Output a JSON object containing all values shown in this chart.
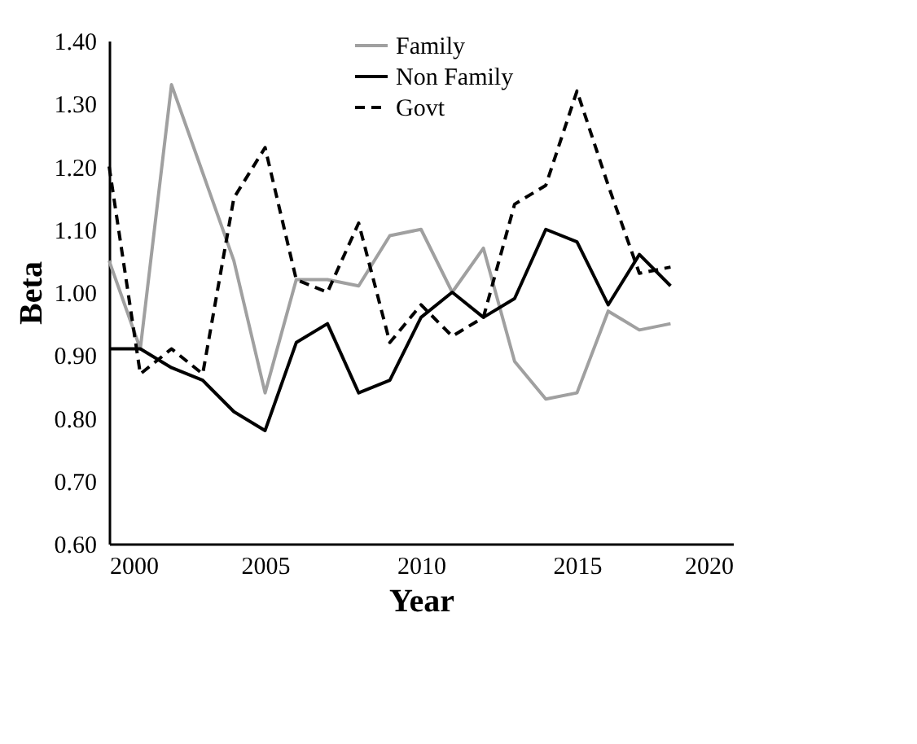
{
  "chart_data": {
    "type": "line",
    "xlabel": "Year",
    "ylabel": "Beta",
    "x": [
      2000,
      2001,
      2002,
      2003,
      2004,
      2005,
      2006,
      2007,
      2008,
      2009,
      2010,
      2011,
      2012,
      2013,
      2014,
      2015,
      2016,
      2017,
      2018
    ],
    "series": [
      {
        "name": "Family",
        "color": "#a0a0a0",
        "line_style": "solid",
        "values": [
          1.05,
          0.91,
          1.33,
          1.19,
          1.05,
          0.84,
          1.02,
          1.02,
          1.01,
          1.09,
          1.1,
          1.0,
          1.07,
          0.89,
          0.83,
          0.84,
          0.97,
          0.94,
          0.95
        ]
      },
      {
        "name": "Non Family",
        "color": "#000000",
        "line_style": "solid",
        "values": [
          0.91,
          0.91,
          0.88,
          0.86,
          0.81,
          0.78,
          0.92,
          0.95,
          0.84,
          0.86,
          0.96,
          1.0,
          0.96,
          0.99,
          1.1,
          1.08,
          0.98,
          1.06,
          1.01
        ]
      },
      {
        "name": "Govt",
        "color": "#000000",
        "line_style": "dashed",
        "values": [
          1.2,
          0.87,
          0.91,
          0.87,
          1.15,
          1.23,
          1.02,
          1.0,
          1.11,
          0.92,
          0.98,
          0.93,
          0.96,
          1.14,
          1.17,
          1.32,
          1.17,
          1.03,
          1.04
        ]
      }
    ],
    "xlim": [
      2000,
      2020
    ],
    "xticks": [
      2000,
      2005,
      2010,
      2015,
      2020
    ],
    "ylim": [
      0.6,
      1.4
    ],
    "yticks": [
      {
        "value": 0.6,
        "label": "0.60"
      },
      {
        "value": 0.7,
        "label": "0.70"
      },
      {
        "value": 0.8,
        "label": "0.80"
      },
      {
        "value": 0.9,
        "label": "0.90"
      },
      {
        "value": 1.0,
        "label": "1.00"
      },
      {
        "value": 1.1,
        "label": "1.10"
      },
      {
        "value": 1.2,
        "label": "1.20"
      },
      {
        "value": 1.3,
        "label": "1.30"
      },
      {
        "value": 1.4,
        "label": "1.40"
      }
    ],
    "grid": false,
    "legend": "top",
    "marker": "none"
  }
}
